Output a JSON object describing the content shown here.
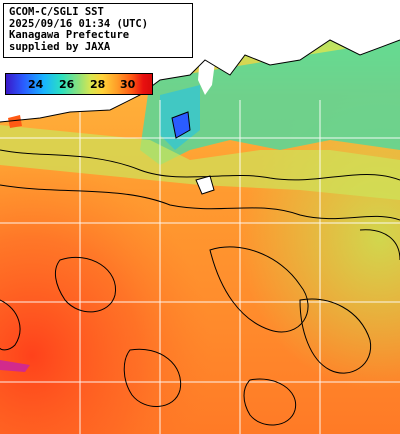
{
  "caption": {
    "line1": "GCOM-C/SGLI SST",
    "line2": "2025/09/16 01:34 (UTC)",
    "line3": "Kanagawa Prefecture",
    "line4": "supplied by JAXA"
  },
  "colorbar": {
    "ticks": [
      "24",
      "26",
      "28",
      "30"
    ],
    "colors": [
      "#3a18c8",
      "#2a5cff",
      "#19b4ff",
      "#2be0c0",
      "#8fe27a",
      "#d8e650",
      "#ffd33a",
      "#ff9e28",
      "#ff5a14",
      "#e81010"
    ]
  },
  "map": {
    "land_color": "#ffffff",
    "grid_color": "#ffffff",
    "contour_color": "#000000"
  }
}
